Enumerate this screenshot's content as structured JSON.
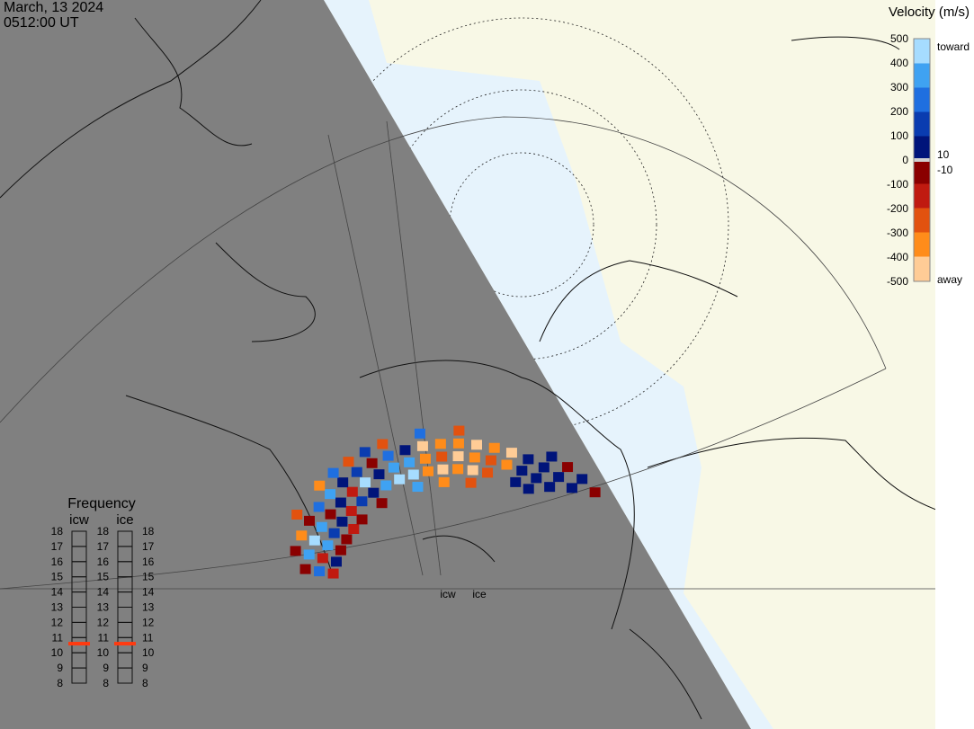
{
  "header": {
    "date": "March, 13 2024",
    "time": "0512:00 UT"
  },
  "colorbar": {
    "title": "Velocity (m/s)",
    "yticks": [
      500,
      400,
      300,
      200,
      100,
      0,
      -100,
      -200,
      -300,
      -400,
      -500
    ],
    "inner_labels": [
      10,
      -10
    ],
    "toward_label": "toward",
    "away_label": "away",
    "toward_colors": [
      "#00147a",
      "#0a3cb0",
      "#1f6fe0",
      "#3fa2f2",
      "#a6dcff"
    ],
    "away_colors": [
      "#8a0000",
      "#c01a10",
      "#e2520f",
      "#ff8c1a",
      "#ffcc96"
    ],
    "low_color": "#d0d0d0"
  },
  "frequency": {
    "title": "Frequency",
    "radars": [
      {
        "name": "icw",
        "value": 10.6
      },
      {
        "name": "ice",
        "value": 10.6
      }
    ],
    "ylim": [
      8,
      18
    ],
    "yticks": [
      8,
      9,
      10,
      11,
      12,
      13,
      14,
      15,
      16,
      17,
      18
    ],
    "marker_color": "#ff3a10"
  },
  "radar_labels": [
    "icw",
    "ice"
  ],
  "cells": [
    [
      0,
      0,
      -150
    ],
    [
      0,
      1,
      250
    ],
    [
      0,
      2,
      -60
    ],
    [
      1,
      0,
      80
    ],
    [
      1,
      1,
      -180
    ],
    [
      1,
      2,
      350
    ],
    [
      1,
      3,
      -40
    ],
    [
      2,
      0,
      -90
    ],
    [
      2,
      1,
      300
    ],
    [
      2,
      2,
      420
    ],
    [
      2,
      3,
      -300
    ],
    [
      3,
      0,
      -70
    ],
    [
      3,
      1,
      150
    ],
    [
      3,
      2,
      380
    ],
    [
      3,
      3,
      -50
    ],
    [
      3,
      4,
      -240
    ],
    [
      4,
      0,
      -120
    ],
    [
      4,
      1,
      60
    ],
    [
      4,
      2,
      -80
    ],
    [
      4,
      3,
      200
    ],
    [
      5,
      0,
      -60
    ],
    [
      5,
      1,
      -150
    ],
    [
      5,
      2,
      90
    ],
    [
      5,
      3,
      320
    ],
    [
      5,
      4,
      -350
    ],
    [
      6,
      1,
      120
    ],
    [
      6,
      2,
      -100
    ],
    [
      6,
      3,
      50
    ],
    [
      6,
      4,
      250
    ],
    [
      7,
      0,
      -30
    ],
    [
      7,
      1,
      80
    ],
    [
      7,
      2,
      410
    ],
    [
      7,
      3,
      160
    ],
    [
      7,
      4,
      -280
    ],
    [
      8,
      1,
      300
    ],
    [
      8,
      2,
      60
    ],
    [
      8,
      3,
      -40
    ],
    [
      8,
      4,
      140
    ],
    [
      9,
      1,
      450
    ],
    [
      9,
      2,
      350
    ],
    [
      9,
      3,
      200
    ],
    [
      9,
      4,
      -200
    ],
    [
      10,
      0,
      380
    ],
    [
      10,
      1,
      470
    ],
    [
      10,
      2,
      300
    ],
    [
      10,
      3,
      60
    ],
    [
      11,
      1,
      -320
    ],
    [
      11,
      2,
      -380
    ],
    [
      11,
      3,
      -450
    ],
    [
      11,
      4,
      260
    ],
    [
      12,
      0,
      -300
    ],
    [
      12,
      1,
      -420
    ],
    [
      12,
      2,
      -250
    ],
    [
      12,
      3,
      -380
    ],
    [
      13,
      1,
      -350
    ],
    [
      13,
      2,
      -460
    ],
    [
      13,
      3,
      -300
    ],
    [
      13,
      4,
      -220
    ],
    [
      14,
      0,
      -260
    ],
    [
      14,
      1,
      -400
    ],
    [
      14,
      2,
      -330
    ],
    [
      14,
      3,
      -480
    ],
    [
      15,
      1,
      -280
    ],
    [
      15,
      2,
      -200
    ],
    [
      15,
      3,
      -360
    ],
    [
      16,
      2,
      -300
    ],
    [
      16,
      3,
      -420
    ],
    [
      17,
      1,
      40
    ],
    [
      17,
      2,
      60
    ],
    [
      17,
      3,
      70
    ],
    [
      18,
      1,
      30
    ],
    [
      18,
      2,
      90
    ],
    [
      18,
      3,
      50
    ],
    [
      18,
      4,
      70
    ],
    [
      19,
      2,
      40
    ],
    [
      19,
      3,
      80
    ],
    [
      19,
      4,
      -60
    ],
    [
      20,
      3,
      30
    ],
    [
      20,
      4,
      60
    ],
    [
      21,
      4,
      -80
    ]
  ]
}
